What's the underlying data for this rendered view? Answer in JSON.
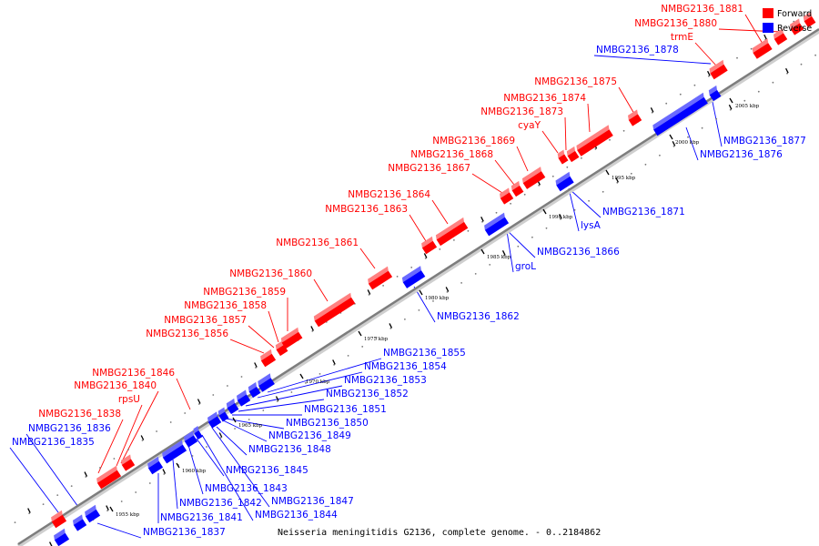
{
  "caption": "Neisseria meningitidis G2136, complete genome. - 0..2184862",
  "legend": {
    "forward": {
      "label": "Forward",
      "color": "#ff0000"
    },
    "reverse": {
      "label": "Reverse",
      "color": "#0000ff"
    }
  },
  "colors": {
    "forward": "#ff0000",
    "reverse": "#0000ff",
    "backbone": "#808080"
  },
  "ticks": [
    "1955 kbp",
    "1960 kbp",
    "1965 kbp",
    "1970 kbp",
    "1975 kbp",
    "1980 kbp",
    "1985 kbp",
    "1990 kbp",
    "1995 kbp",
    "2000 kbp",
    "2005 kbp"
  ],
  "forward_labels": [
    "NMBG2136_1881",
    "NMBG2136_1880",
    "trmE",
    "NMBG2136_1875",
    "NMBG2136_1874",
    "NMBG2136_1873",
    "cyaY",
    "NMBG2136_1869",
    "NMBG2136_1868",
    "NMBG2136_1867",
    "NMBG2136_1864",
    "NMBG2136_1863",
    "NMBG2136_1861",
    "NMBG2136_1860",
    "NMBG2136_1859",
    "NMBG2136_1858",
    "NMBG2136_1857",
    "NMBG2136_1856",
    "NMBG2136_1846",
    "NMBG2136_1840",
    "rpsU",
    "NMBG2136_1838"
  ],
  "reverse_labels": [
    "NMBG2136_1878",
    "NMBG2136_1877",
    "NMBG2136_1876",
    "NMBG2136_1871",
    "lysA",
    "NMBG2136_1866",
    "groL",
    "NMBG2136_1862",
    "NMBG2136_1855",
    "NMBG2136_1854",
    "NMBG2136_1853",
    "NMBG2136_1852",
    "NMBG2136_1851",
    "NMBG2136_1850",
    "NMBG2136_1849",
    "NMBG2136_1848",
    "NMBG2136_1845",
    "NMBG2136_1843",
    "NMBG2136_1842",
    "NMBG2136_1841",
    "NMBG2136_1847",
    "NMBG2136_1844",
    "NMBG2136_1836",
    "NMBG2136_1835",
    "NMBG2136_1837"
  ]
}
